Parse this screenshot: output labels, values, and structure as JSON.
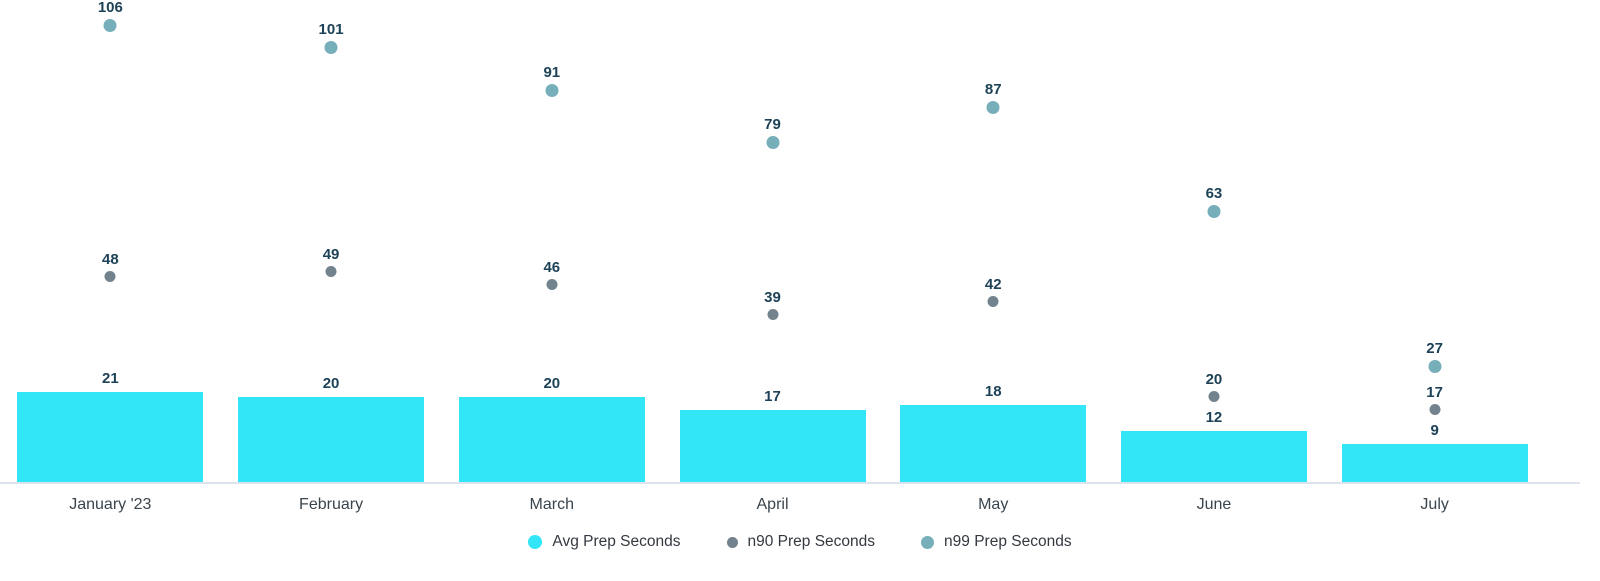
{
  "chart_data": {
    "type": "bar",
    "subtype": "combo bar + scatter with value annotations",
    "categories": [
      "January '23",
      "February",
      "March",
      "April",
      "May",
      "June",
      "July"
    ],
    "series": [
      {
        "name": "Avg Prep Seconds",
        "type": "bar",
        "color": "#33e6f7",
        "marker_size": 14,
        "values": [
          21,
          20,
          20,
          17,
          18,
          12,
          9
        ]
      },
      {
        "name": "n90 Prep Seconds",
        "type": "scatter",
        "color": "#72838d",
        "marker_size": 11,
        "values": [
          48,
          49,
          46,
          39,
          42,
          20,
          17
        ]
      },
      {
        "name": "n99 Prep Seconds",
        "type": "scatter",
        "color": "#76aeba",
        "marker_size": 13,
        "values": [
          106,
          101,
          91,
          79,
          87,
          63,
          27
        ]
      }
    ],
    "title": "",
    "xlabel": "",
    "ylabel": "",
    "ylim": [
      0,
      112
    ],
    "grid": false,
    "y_axis_visible": false,
    "annotations": "every bar and point labeled with its value above the mark",
    "legend_position": "bottom-center"
  },
  "colors": {
    "annotation_text": "#1e4257",
    "x_label_text": "#3a454e",
    "legend_text": "#333940",
    "axis_line": "#dde3ed",
    "background": "#ffffff"
  }
}
